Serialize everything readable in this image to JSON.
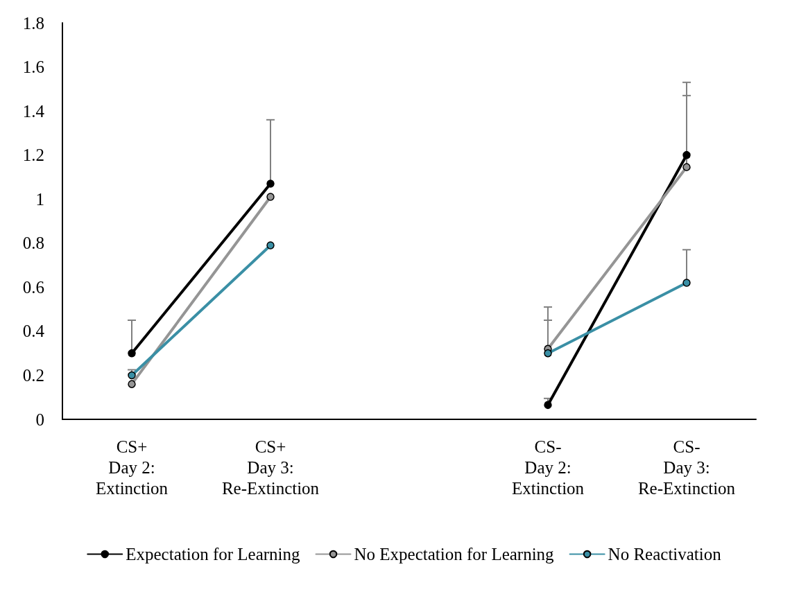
{
  "chart_data": {
    "type": "line",
    "categories": [
      "CS+\nDay 2:\nExtinction",
      "CS+\nDay 3:\nRe-Extinction",
      null,
      "CS-\nDay 2:\nExtinction",
      "CS-\nDay 3:\nRe-Extinction"
    ],
    "series": [
      {
        "name": "Expectation for Learning",
        "color": "#000000",
        "values": [
          0.3,
          1.07,
          null,
          0.065,
          1.2
        ],
        "errors": [
          [
            0.3,
            0.45
          ],
          [
            1.07,
            1.36
          ],
          null,
          [
            0.065,
            0.095
          ],
          [
            1.2,
            1.53
          ]
        ]
      },
      {
        "name": "No Expectation for Learning",
        "color": "#959595",
        "values": [
          0.16,
          1.01,
          null,
          0.32,
          1.145
        ],
        "errors": [
          null,
          null,
          null,
          [
            0.32,
            0.51
          ],
          [
            1.145,
            1.47
          ]
        ]
      },
      {
        "name": "No Reactivation",
        "color": "#3a8fa5",
        "values": [
          0.2,
          0.79,
          null,
          0.3,
          0.62
        ],
        "errors": [
          [
            0.2,
            0.225
          ],
          null,
          null,
          [
            0.3,
            0.45
          ],
          [
            0.62,
            0.77
          ]
        ]
      }
    ],
    "ylim": [
      0,
      1.8
    ],
    "yticks": [
      0,
      0.2,
      0.4,
      0.6,
      0.8,
      1,
      1.2,
      1.4,
      1.6,
      1.8
    ],
    "grid": false,
    "legend": "bottom",
    "marker": "circle",
    "line_style": "solid"
  }
}
